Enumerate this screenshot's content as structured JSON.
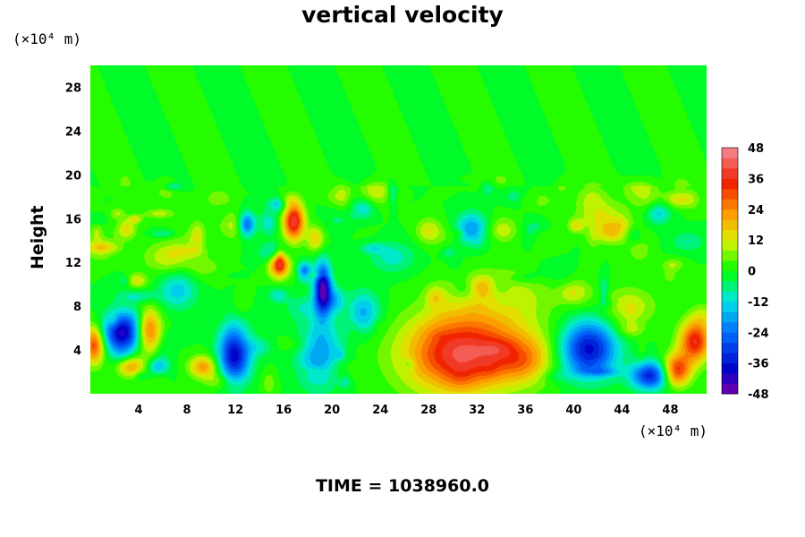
{
  "chart_data": {
    "type": "heatmap",
    "title": "vertical velocity",
    "ylabel": "Height",
    "xlabel": "",
    "x_unit": "(×10⁴ m)",
    "y_unit": "(×10⁴ m)",
    "footer": "TIME = 1038960.0",
    "xlim": [
      0,
      51
    ],
    "ylim": [
      0,
      30
    ],
    "x_ticks": [
      4,
      8,
      12,
      16,
      20,
      24,
      28,
      32,
      36,
      40,
      44,
      48
    ],
    "y_ticks": [
      4,
      8,
      12,
      16,
      20,
      24,
      28
    ],
    "colorbar": {
      "range": [
        -48,
        48
      ],
      "step": 4,
      "tick_values": [
        48,
        36,
        24,
        12,
        0,
        -12,
        -24,
        -36,
        -48
      ]
    },
    "features": [
      {
        "x": 2.6,
        "y": 5.6,
        "value": -42,
        "sx": 1.1,
        "sy": 1.3
      },
      {
        "x": 0.3,
        "y": 4.5,
        "value": 32,
        "sx": 0.6,
        "sy": 1.2
      },
      {
        "x": 4.8,
        "y": 5.8,
        "value": 28,
        "sx": 0.7,
        "sy": 1.4
      },
      {
        "x": 3.3,
        "y": 2.6,
        "value": 22,
        "sx": 0.8,
        "sy": 0.7
      },
      {
        "x": 5.6,
        "y": 2.5,
        "value": -18,
        "sx": 0.6,
        "sy": 0.6
      },
      {
        "x": 9.3,
        "y": 2.5,
        "value": 22,
        "sx": 0.8,
        "sy": 0.7
      },
      {
        "x": 11.9,
        "y": 3.7,
        "value": -40,
        "sx": 0.9,
        "sy": 1.8
      },
      {
        "x": 12.9,
        "y": 15.5,
        "value": -32,
        "sx": 0.5,
        "sy": 0.8
      },
      {
        "x": 16.8,
        "y": 15.8,
        "value": 40,
        "sx": 0.6,
        "sy": 1.2
      },
      {
        "x": 15.6,
        "y": 11.8,
        "value": 32,
        "sx": 0.6,
        "sy": 0.8
      },
      {
        "x": 17.7,
        "y": 11.2,
        "value": -24,
        "sx": 0.4,
        "sy": 0.6
      },
      {
        "x": 18.6,
        "y": 14.2,
        "value": 16,
        "sx": 0.5,
        "sy": 0.8
      },
      {
        "x": 19.2,
        "y": 9.6,
        "value": -46,
        "sx": 0.5,
        "sy": 1.6
      },
      {
        "x": 18.9,
        "y": 3.8,
        "value": -20,
        "sx": 1.3,
        "sy": 2.2
      },
      {
        "x": 31.5,
        "y": 4.0,
        "value": 34,
        "sx": 3.6,
        "sy": 2.4
      },
      {
        "x": 29.5,
        "y": 2.8,
        "value": 10,
        "sx": 2.6,
        "sy": 2.5
      },
      {
        "x": 35.8,
        "y": 3.2,
        "value": 14,
        "sx": 1.5,
        "sy": 1.4
      },
      {
        "x": 41.2,
        "y": 4.1,
        "value": -38,
        "sx": 1.6,
        "sy": 1.8
      },
      {
        "x": 46.3,
        "y": 1.7,
        "value": -34,
        "sx": 1.1,
        "sy": 0.9
      },
      {
        "x": 48.5,
        "y": 2.2,
        "value": 34,
        "sx": 0.8,
        "sy": 1.0
      },
      {
        "x": 50.0,
        "y": 4.8,
        "value": 36,
        "sx": 0.9,
        "sy": 1.3
      },
      {
        "x": 44.5,
        "y": 8.0,
        "value": 12,
        "sx": 1.5,
        "sy": 1.2
      },
      {
        "x": 42.5,
        "y": 16.0,
        "value": 12,
        "sx": 1.5,
        "sy": 1.1
      },
      {
        "x": 31.5,
        "y": 15.2,
        "value": -18,
        "sx": 0.9,
        "sy": 1.0
      },
      {
        "x": 7.2,
        "y": 9.5,
        "value": -14,
        "sx": 1.1,
        "sy": 1.2
      },
      {
        "x": 6.5,
        "y": 12.5,
        "value": 12,
        "sx": 1.4,
        "sy": 1.0
      },
      {
        "x": 22.5,
        "y": 7.5,
        "value": -18,
        "sx": 1.0,
        "sy": 1.3
      },
      {
        "x": 33.5,
        "y": 9.0,
        "value": 12,
        "sx": 3.0,
        "sy": 1.6
      },
      {
        "x": 25.0,
        "y": 12.5,
        "value": -10,
        "sx": 1.3,
        "sy": 1.0
      }
    ]
  }
}
